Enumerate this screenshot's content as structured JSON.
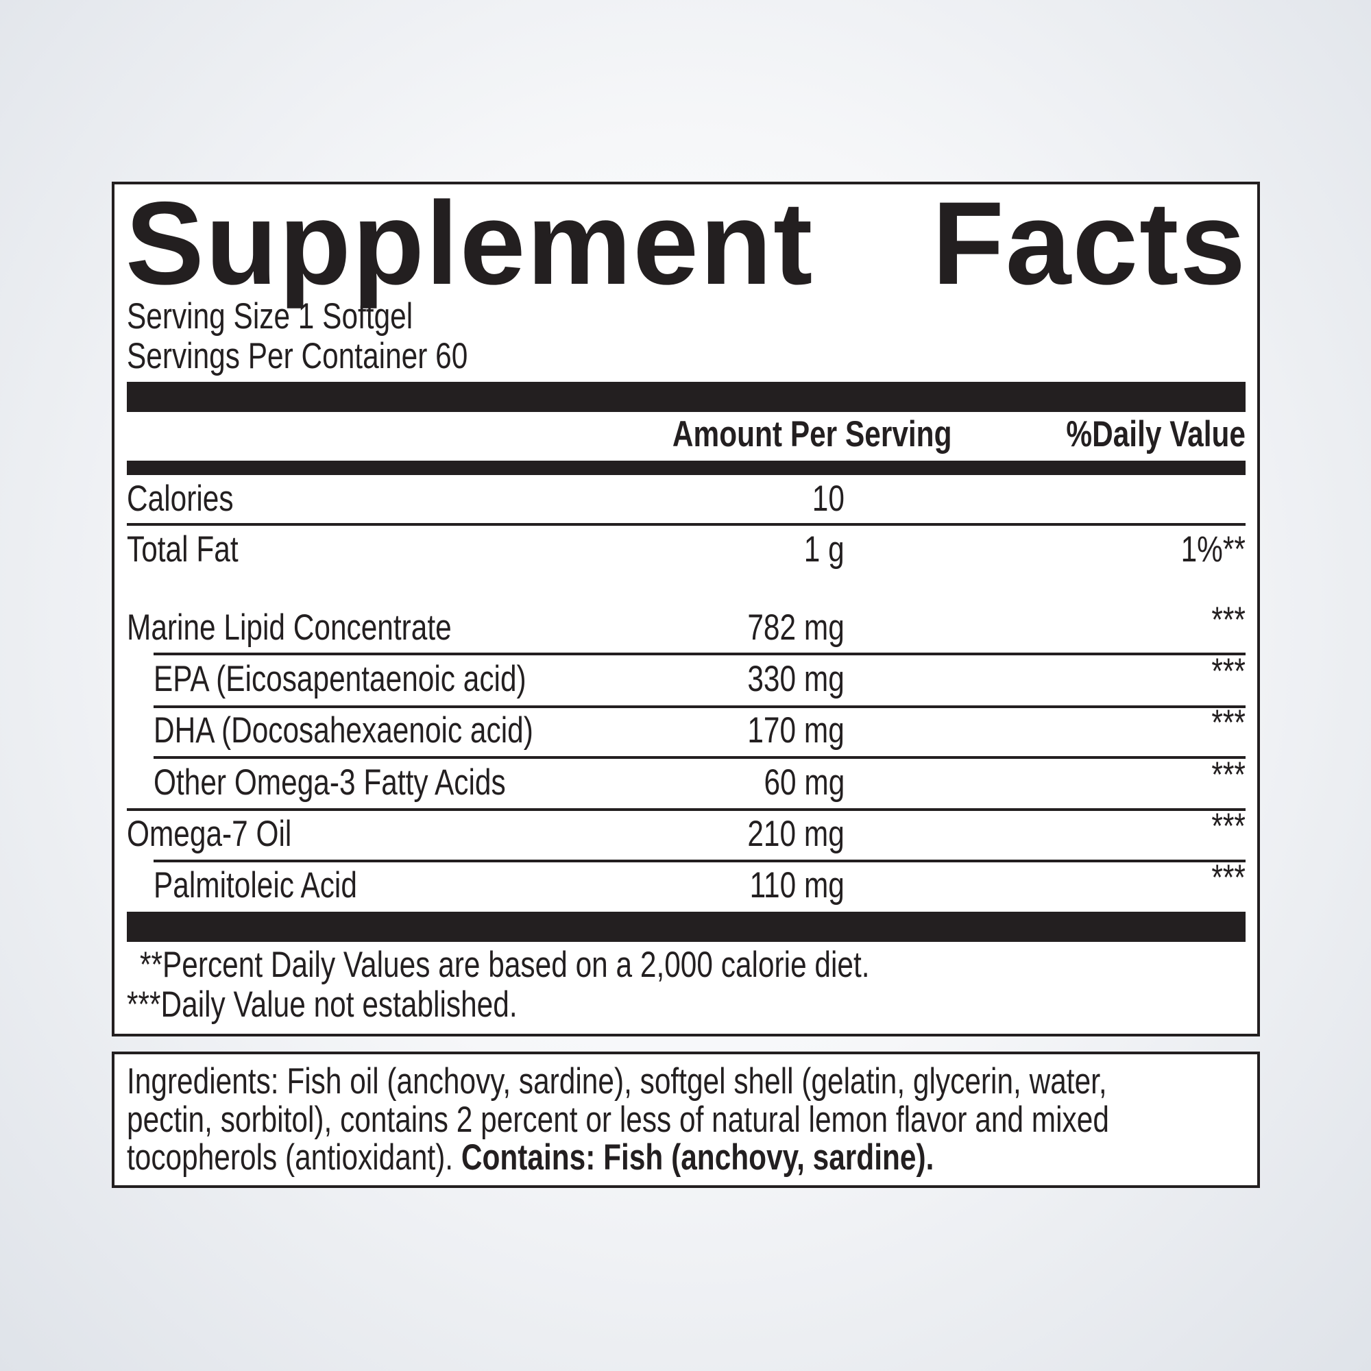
{
  "title": {
    "word1": "Supplement",
    "word2": "Facts"
  },
  "serving_size": "Serving Size 1 Softgel",
  "servings_per_container": "Servings Per Container 60",
  "headers": {
    "amount": "Amount Per Serving",
    "daily_value": "%Daily Value"
  },
  "rows": [
    {
      "name": "Calories",
      "amount": "10",
      "dv": ""
    },
    {
      "name": "Total Fat",
      "amount": "1 g",
      "dv": "1%**"
    },
    {
      "name": "Marine Lipid Concentrate",
      "amount": "782 mg",
      "dv": "***"
    },
    {
      "name": "EPA (Eicosapentaenoic acid)",
      "amount": "330 mg",
      "dv": "***"
    },
    {
      "name": "DHA (Docosahexaenoic acid)",
      "amount": "170 mg",
      "dv": "***"
    },
    {
      "name": "Other Omega-3 Fatty Acids",
      "amount": "60 mg",
      "dv": "***"
    },
    {
      "name": "Omega-7 Oil",
      "amount": "210 mg",
      "dv": "***"
    },
    {
      "name": "Palmitoleic Acid",
      "amount": "110 mg",
      "dv": "***"
    }
  ],
  "footnotes": [
    "**Percent Daily Values are based on a 2,000 calorie diet.",
    "***Daily Value not established."
  ],
  "ingredients": {
    "lines": [
      "Ingredients: Fish oil (anchovy, sardine), softgel shell (gelatin, glycerin, water,",
      "pectin, sorbitol), contains 2 percent or less of natural lemon flavor and mixed",
      "tocopherols (antioxidant). "
    ],
    "allergen": "Contains: Fish (anchovy, sardine)."
  },
  "colors": {
    "ink": "#231f20",
    "panel": "#ffffff"
  }
}
